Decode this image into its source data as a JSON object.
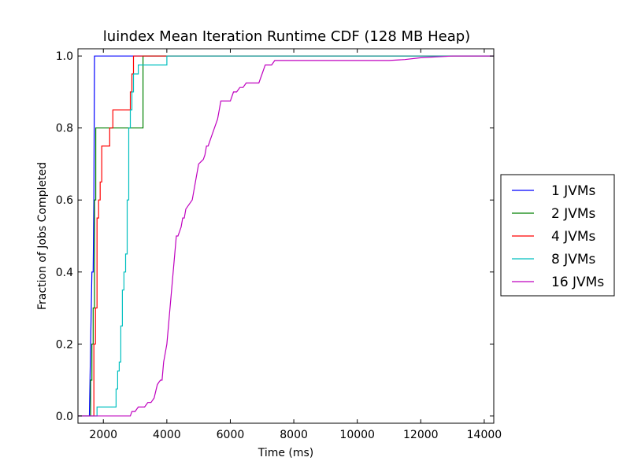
{
  "chart_data": {
    "type": "line",
    "title": "luindex Mean Iteration Runtime CDF (128 MB Heap)",
    "xlabel": "Time (ms)",
    "ylabel": "Fraction of Jobs Completed",
    "xlim": [
      1200,
      14300
    ],
    "ylim": [
      -0.02,
      1.02
    ],
    "xticks": [
      2000,
      4000,
      6000,
      8000,
      10000,
      12000,
      14000
    ],
    "yticks": [
      0.0,
      0.2,
      0.4,
      0.6,
      0.8,
      1.0
    ],
    "grid": false,
    "legend_position": "center-right-outside",
    "series": [
      {
        "name": "1 JVMs",
        "color": "#0000ff",
        "x": [
          1200,
          1560,
          1600,
          1640,
          1680,
          1700,
          1720,
          1760,
          14300
        ],
        "y": [
          0.0,
          0.0,
          0.2,
          0.4,
          0.4,
          0.6,
          1.0,
          1.0,
          1.0
        ]
      },
      {
        "name": "2 JVMs",
        "color": "#008000",
        "x": [
          1200,
          1560,
          1600,
          1640,
          1680,
          1720,
          1760,
          1800,
          3200,
          3250,
          14300
        ],
        "y": [
          0.0,
          0.0,
          0.1,
          0.2,
          0.3,
          0.6,
          0.8,
          0.8,
          0.8,
          1.0,
          1.0
        ],
        "steps": true
      },
      {
        "name": "4 JVMs",
        "color": "#ff0000",
        "x": [
          1200,
          1650,
          1700,
          1750,
          1800,
          1850,
          1900,
          1950,
          2000,
          2100,
          2200,
          2300,
          2450,
          2800,
          2850,
          2900,
          2950,
          3000,
          3100,
          14300
        ],
        "y": [
          0.0,
          0.0,
          0.2,
          0.3,
          0.55,
          0.6,
          0.65,
          0.75,
          0.75,
          0.75,
          0.8,
          0.85,
          0.85,
          0.85,
          0.9,
          0.95,
          1.0,
          1.0,
          1.0,
          1.0
        ],
        "steps": true
      },
      {
        "name": "8 JVMs",
        "color": "#00bfbf",
        "x": [
          1200,
          1750,
          1800,
          2000,
          2200,
          2400,
          2450,
          2500,
          2550,
          2600,
          2650,
          2700,
          2750,
          2800,
          2850,
          2900,
          2950,
          3000,
          3050,
          3100,
          3200,
          3500,
          3600,
          3800,
          4000,
          4100,
          14300
        ],
        "y": [
          0.0,
          0.0,
          0.025,
          0.025,
          0.025,
          0.075,
          0.125,
          0.15,
          0.25,
          0.35,
          0.4,
          0.45,
          0.6,
          0.8,
          0.85,
          0.9,
          0.95,
          0.95,
          0.95,
          0.975,
          0.975,
          0.975,
          0.975,
          0.975,
          1.0,
          1.0,
          1.0
        ],
        "steps": true
      },
      {
        "name": "16 JVMs",
        "color": "#bf00bf",
        "x": [
          1200,
          2850,
          2900,
          3000,
          3100,
          3200,
          3300,
          3400,
          3500,
          3600,
          3700,
          3800,
          3850,
          3900,
          4000,
          4050,
          4100,
          4150,
          4200,
          4250,
          4300,
          4350,
          4400,
          4450,
          4500,
          4550,
          4600,
          4800,
          5000,
          5150,
          5200,
          5250,
          5300,
          5400,
          5500,
          5600,
          5650,
          5700,
          5750,
          5800,
          5900,
          6000,
          6100,
          6200,
          6300,
          6400,
          6500,
          6600,
          6700,
          6800,
          6900,
          7000,
          7100,
          7200,
          7300,
          7400,
          7500,
          7600,
          11000,
          11500,
          12000,
          13000,
          14300
        ],
        "y": [
          0.0,
          0.0,
          0.0125,
          0.0125,
          0.025,
          0.025,
          0.025,
          0.0375,
          0.0375,
          0.05,
          0.0875,
          0.1,
          0.1,
          0.15,
          0.2,
          0.25,
          0.3,
          0.35,
          0.4,
          0.45,
          0.5,
          0.5,
          0.5125,
          0.525,
          0.55,
          0.55,
          0.575,
          0.6,
          0.7,
          0.7125,
          0.725,
          0.75,
          0.75,
          0.775,
          0.8,
          0.825,
          0.85,
          0.875,
          0.875,
          0.875,
          0.875,
          0.875,
          0.9,
          0.9,
          0.9125,
          0.9125,
          0.925,
          0.925,
          0.925,
          0.925,
          0.925,
          0.95,
          0.975,
          0.975,
          0.975,
          0.9875,
          0.9875,
          0.9875,
          0.9875,
          0.99,
          0.995,
          1.0,
          1.0
        ]
      }
    ]
  }
}
